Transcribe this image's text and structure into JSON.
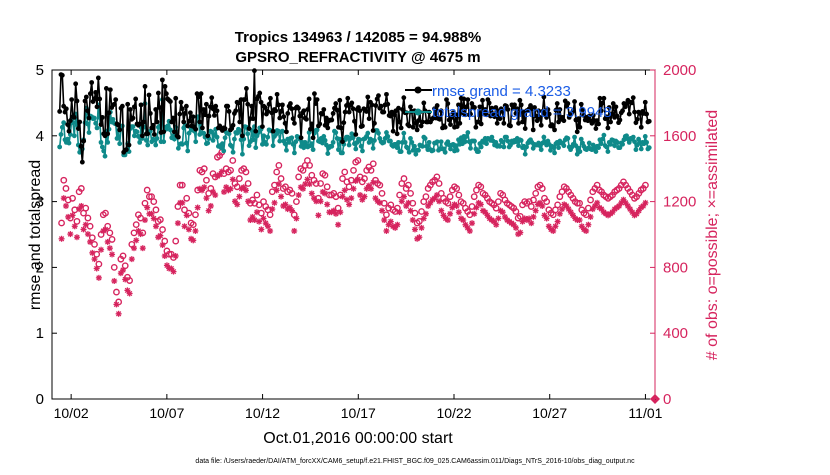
{
  "chart_data": {
    "type": "line",
    "title_line1": "Tropics 134963 / 142085 = 94.988%",
    "title_line2": "GPSRO_REFRACTIVITY @ 4675 m",
    "xlabel": "Oct.01,2016 00:00:00 start",
    "ylabel_left": "rmse and totalspread",
    "ylabel_right": "# of obs: o=possible; ×=assimilated",
    "footer": "data file: /Users/raeder/DAI/ATM_forcXX/CAM6_setup/f.e21.FHIST_BGC.f09_025.CAM6assim.011/Diags_NTrS_2016-10/obs_diag_output.nc",
    "x_ticks": [
      "10/02",
      "10/07",
      "10/12",
      "10/17",
      "10/22",
      "10/27",
      "11/01"
    ],
    "x_tick_days": [
      1,
      6,
      11,
      16,
      21,
      26,
      31
    ],
    "xlim_days": [
      0,
      31.5
    ],
    "ylim_left": [
      0,
      5
    ],
    "y_ticks_left": [
      "0",
      "1",
      "2",
      "3",
      "4",
      "5"
    ],
    "ylim_right": [
      0,
      2000
    ],
    "y_ticks_right": [
      "0",
      "400",
      "800",
      "1200",
      "1600",
      "2000"
    ],
    "legend": {
      "rmse": "rmse grand   = 4.3233",
      "spread": "totalspread grand   = 3.9948",
      "placement": "top-right"
    },
    "colors": {
      "rmse": "#000000",
      "spread": "#0f8a8a",
      "obs": "#d6245e"
    },
    "series": [
      {
        "name": "rmse",
        "values": [
          4.37,
          4.93,
          4.92,
          4.45,
          4.36,
          4.41,
          4.17,
          4.07,
          4.23,
          4.55,
          4.29,
          4.28,
          4.79,
          4.53,
          4.11,
          4.21,
          3.84,
          3.6,
          3.92,
          4.53,
          4.59,
          4.38,
          4.27,
          4.64,
          4.81,
          4.52,
          4.56,
          4.66,
          4.44,
          4.88,
          4.56,
          4.17,
          4.28,
          4.03,
          4.0,
          4.72,
          4.03,
          4.35,
          4.7,
          4.43,
          4.47,
          4.48,
          4.55,
          4.18,
          4.16,
          4.09,
          4.42,
          4.45,
          3.75,
          3.78,
          3.79,
          4.48,
          3.86,
          4.4,
          4.25,
          4.27,
          4.44,
          4.56,
          4.18,
          4.16,
          4.18,
          4.47,
          4.0,
          4.21,
          4.75,
          4.03,
          4.03,
          4.62,
          4.34,
          4.12,
          4.16,
          4.02,
          4.4,
          4.21,
          4.65,
          4.43,
          4.05,
          4.85,
          4.06,
          4.75,
          4.64,
          4.56,
          4.54,
          4.52,
          4.21,
          4.27,
          4.06,
          4.57,
          4.0,
          3.98,
          4.33,
          4.51,
          4.41,
          4.21,
          4.34,
          4.45,
          4.15,
          4.22,
          4.35,
          4.15,
          4.29,
          4.13,
          4.1,
          4.64,
          4.59,
          4.21,
          4.64,
          4.12,
          4.4,
          4.32,
          4.48,
          4.0,
          4.3,
          4.44,
          4.58,
          4.41,
          4.31,
          4.45,
          4.38,
          4.12,
          4.15,
          4.11,
          4.08,
          4.12,
          4.11,
          4.45,
          4.45,
          4.37,
          4.09,
          4.11,
          4.16,
          4.34,
          4.38,
          4.51,
          4.5,
          4.21,
          4.55,
          4.0,
          4.55,
          4.55,
          4.72,
          4.48,
          4.11,
          4.26,
          4.45,
          4.26,
          4.99,
          4.07,
          4.56,
          4.6,
          4.65,
          4.51,
          4.14,
          4.45,
          4.43,
          4.33,
          4.37,
          4.48,
          4.57,
          4.35,
          4.07,
          4.4,
          4.38,
          4.63,
          4.47,
          4.27,
          4.37,
          4.47,
          4.29,
          4.19,
          4.06,
          4.34,
          4.45,
          4.49,
          4.41,
          4.26,
          4.19,
          4.42,
          4.44,
          4.42,
          4.3,
          3.97,
          4.35,
          4.38,
          4.27,
          4.25,
          4.4,
          4.56,
          4.1,
          4.18,
          3.97,
          4.64,
          4.49,
          4.55,
          4.15,
          4.18,
          4.34,
          4.33,
          4.4,
          4.16,
          4.27,
          4.12,
          4.23,
          4.24,
          4.24,
          4.34,
          4.42,
          4.49,
          4.39,
          4.13,
          4.54,
          4.12,
          3.91,
          4.2,
          4.36,
          4.46,
          4.57,
          4.36,
          4.47,
          4.5,
          4.41,
          4.22,
          4.02,
          4.4,
          4.43,
          4.38,
          4.14,
          4.15,
          4.41,
          4.4,
          4.37,
          4.59,
          4.26,
          4.51,
          4.47,
          4.08,
          4.19,
          4.46,
          4.56,
          4.61,
          4.42,
          4.45,
          4.36,
          4.36,
          4.47,
          4.63,
          4.48,
          4.31,
          4.3,
          4.36,
          4.07,
          4.32,
          4.38,
          4.03,
          4.42,
          4.21,
          4.12,
          4.4,
          4.58,
          4.35,
          4.35,
          4.17,
          4.15,
          4.44,
          4.37,
          4.13,
          4.38,
          4.19,
          4.09,
          4.23,
          4.36,
          4.15,
          4.21,
          4.5,
          4.38,
          4.21,
          4.21,
          4.36,
          4.21,
          4.25,
          4.27,
          4.41,
          4.27,
          4.46,
          4.26,
          4.25,
          4.38,
          4.12,
          4.15,
          4.13,
          4.55,
          4.49,
          4.24,
          4.17,
          4.28,
          4.35,
          4.13,
          4.32,
          4.14,
          4.47,
          4.19,
          4.57,
          4.35,
          4.56,
          4.32,
          4.44,
          4.55,
          4.32,
          4.33,
          4.49,
          4.44,
          4.43,
          4.13,
          4.21,
          4.21,
          4.44,
          4.18,
          4.54,
          4.35,
          4.4,
          4.32,
          4.55,
          4.5,
          4.3,
          4.42,
          4.33,
          4.29,
          4.43,
          4.19,
          4.38,
          4.26,
          4.41,
          4.37,
          4.19,
          4.46,
          4.45,
          4.4,
          4.16,
          4.15,
          4.47,
          4.42,
          4.47,
          4.34,
          4.41,
          4.19,
          4.54,
          4.47,
          4.21,
          4.36,
          4.11,
          4.38,
          4.39,
          4.41,
          4.46,
          4.41,
          4.09,
          4.43,
          4.3,
          4.23,
          4.38,
          4.28,
          4.16,
          4.37,
          4.59,
          4.33,
          4.28,
          4.4,
          4.33,
          4.15,
          4.17,
          4.14,
          4.09,
          4.39,
          4.49,
          4.21,
          4.4,
          4.25,
          4.28,
          4.23,
          4.53,
          4.45,
          4.49,
          4.28,
          4.33,
          4.35,
          4.38,
          4.52,
          4.24,
          4.06,
          4.26,
          4.13,
          4.48,
          4.4,
          4.31,
          4.24,
          4.28,
          4.23,
          4.3,
          4.23,
          4.19,
          4.31,
          4.23,
          4.11,
          4.23,
          4.18,
          4.57,
          4.38,
          4.5,
          4.57,
          4.26,
          4.29,
          4.12,
          4.43,
          4.21,
          4.33,
          4.49,
          4.28,
          4.44,
          4.3,
          4.2,
          4.24,
          4.35,
          4.38,
          4.49,
          4.44,
          4.49,
          4.54,
          4.33,
          4.51,
          4.5,
          4.58,
          4.36,
          4.2,
          4.25,
          4.36,
          4.34,
          4.13,
          4.37,
          4.34,
          4.51,
          4.33,
          4.21,
          4.22
        ]
      },
      {
        "name": "totalspread",
        "values": [
          3.83,
          4.02,
          4.13,
          4.2,
          3.94,
          3.9,
          3.95,
          3.89,
          4.02,
          4.25,
          4.2,
          4.0,
          4.33,
          4.17,
          3.86,
          3.75,
          3.79,
          3.8,
          3.94,
          4.2,
          4.42,
          4.18,
          4.05,
          4.3,
          4.29,
          4.26,
          4.27,
          4.19,
          4.12,
          4.47,
          4.28,
          3.9,
          3.83,
          3.77,
          3.69,
          4.07,
          3.9,
          4.1,
          4.36,
          4.21,
          4.25,
          4.19,
          4.18,
          3.96,
          4.08,
          3.88,
          4.11,
          4.15,
          3.71,
          3.71,
          3.76,
          3.88,
          3.76,
          4.11,
          4.14,
          4.14,
          4.0,
          4.07,
          4.06,
          3.99,
          3.9,
          4.13,
          3.96,
          4.13,
          4.49,
          3.93,
          3.86,
          4.05,
          4.07,
          3.91,
          3.95,
          3.94,
          3.86,
          3.96,
          4.13,
          4.15,
          3.91,
          4.55,
          3.91,
          4.13,
          4.1,
          4.15,
          4.22,
          4.09,
          3.97,
          4.0,
          3.95,
          4.13,
          4.06,
          3.81,
          3.87,
          3.88,
          3.87,
          4.12,
          4.16,
          3.89,
          3.77,
          4.04,
          4.13,
          4.09,
          4.1,
          4.07,
          3.91,
          4.29,
          4.29,
          4.02,
          4.18,
          4.04,
          4.04,
          3.98,
          3.88,
          3.89,
          3.96,
          4.07,
          4.06,
          3.93,
          4.01,
          4.1,
          3.98,
          3.84,
          3.85,
          3.82,
          3.88,
          3.77,
          3.97,
          4.05,
          4.04,
          4.03,
          3.86,
          3.84,
          3.75,
          3.95,
          4.05,
          4.04,
          4.1,
          4.08,
          3.94,
          3.72,
          3.95,
          4.14,
          4.13,
          4.03,
          3.85,
          3.91,
          4.08,
          3.94,
          4.14,
          3.82,
          4.0,
          4.05,
          4.12,
          4.1,
          3.87,
          4.0,
          3.9,
          3.87,
          3.98,
          4.09,
          4.08,
          4.07,
          3.85,
          3.99,
          4.02,
          4.08,
          4.07,
          3.92,
          4.06,
          4.07,
          3.92,
          3.88,
          3.78,
          3.95,
          3.9,
          3.96,
          3.97,
          3.87,
          3.74,
          3.91,
          3.99,
          3.98,
          3.95,
          3.84,
          3.9,
          3.82,
          3.9,
          3.85,
          3.83,
          4.05,
          3.85,
          3.88,
          3.79,
          4.04,
          4.08,
          4.09,
          3.92,
          3.91,
          3.96,
          3.89,
          3.99,
          3.93,
          3.86,
          3.73,
          3.82,
          3.84,
          3.84,
          3.9,
          4.07,
          4.05,
          3.96,
          3.79,
          3.95,
          3.74,
          3.74,
          3.87,
          3.94,
          3.98,
          3.98,
          3.86,
          3.96,
          4.03,
          3.97,
          3.88,
          3.8,
          3.9,
          3.95,
          3.94,
          3.84,
          3.77,
          3.95,
          3.96,
          3.99,
          4.04,
          3.9,
          3.95,
          3.93,
          3.81,
          3.93,
          4.08,
          4.08,
          4.04,
          3.96,
          3.91,
          3.89,
          3.9,
          3.96,
          4.05,
          3.99,
          3.92,
          3.92,
          3.86,
          3.84,
          3.87,
          3.87,
          3.82,
          3.9,
          3.76,
          3.76,
          3.9,
          4.04,
          3.9,
          3.83,
          3.81,
          3.75,
          3.96,
          3.9,
          3.78,
          3.84,
          3.72,
          3.78,
          3.78,
          3.86,
          3.85,
          3.84,
          3.98,
          3.96,
          3.84,
          3.79,
          3.9,
          3.79,
          3.77,
          3.78,
          3.89,
          3.89,
          3.91,
          3.78,
          3.8,
          3.91,
          3.8,
          3.8,
          3.75,
          3.88,
          3.91,
          3.86,
          3.8,
          3.86,
          3.87,
          3.77,
          3.85,
          3.78,
          3.94,
          3.87,
          3.97,
          3.88,
          3.99,
          3.91,
          3.99,
          4.05,
          3.91,
          3.81,
          3.92,
          3.92,
          3.92,
          3.8,
          3.76,
          3.76,
          3.88,
          3.83,
          3.92,
          3.9,
          3.96,
          3.88,
          3.96,
          3.95,
          3.93,
          3.98,
          3.92,
          3.86,
          3.9,
          3.84,
          3.85,
          3.84,
          3.93,
          3.91,
          3.83,
          3.98,
          3.98,
          3.92,
          3.83,
          3.86,
          3.92,
          3.9,
          3.93,
          3.91,
          3.96,
          3.85,
          3.94,
          3.93,
          3.82,
          3.84,
          3.72,
          3.83,
          3.89,
          3.92,
          3.94,
          3.9,
          3.81,
          3.87,
          3.86,
          3.86,
          3.89,
          3.85,
          3.79,
          3.89,
          3.98,
          3.91,
          3.86,
          3.92,
          3.87,
          3.78,
          3.84,
          3.83,
          3.74,
          3.88,
          3.9,
          3.82,
          3.92,
          3.89,
          3.89,
          3.85,
          3.94,
          3.97,
          3.96,
          3.83,
          3.79,
          3.83,
          3.87,
          3.98,
          3.85,
          3.72,
          3.81,
          3.76,
          3.95,
          3.89,
          3.84,
          3.8,
          3.79,
          3.81,
          3.89,
          3.8,
          3.79,
          3.86,
          3.81,
          3.76,
          3.84,
          3.82,
          3.94,
          3.88,
          3.95,
          4.01,
          3.85,
          3.83,
          3.76,
          3.9,
          3.87,
          3.94,
          3.93,
          3.85,
          3.92,
          3.9,
          3.82,
          3.82,
          3.89,
          3.87,
          3.94,
          3.99,
          4.0,
          3.95,
          3.9,
          3.96,
          3.95,
          3.98,
          3.91,
          3.79,
          3.86,
          3.95,
          3.9,
          3.8,
          3.9,
          3.88,
          3.99,
          3.9,
          3.8,
          3.82
        ]
      }
    ],
    "obs_possible": [
      1070,
      1330,
      1280,
      1210,
      1100,
      1220,
      1150,
      1080,
      1260,
      1280,
      1130,
      1160,
      1100,
      1050,
      980,
      940,
      880,
      820,
      1000,
      1120,
      1130,
      1050,
      1010,
      970,
      800,
      650,
      590,
      850,
      870,
      810,
      740,
      720,
      940,
      1010,
      1060,
      1120,
      1100,
      1010,
      1190,
      1270,
      1230,
      1230,
      1200,
      1150,
      1080,
      1090,
      1030,
      960,
      900,
      880,
      880,
      860,
      960,
      1170,
      1300,
      1300,
      1150,
      1220,
      1130,
      1070,
      1060,
      1120,
      1270,
      1390,
      1380,
      1400,
      1330,
      1250,
      1280,
      1370,
      1350,
      1470,
      1480,
      1500,
      1370,
      1400,
      1380,
      1390,
      1450,
      1310,
      1290,
      1340,
      1390,
      1400,
      1380,
      1310,
      1190,
      1210,
      1190,
      1240,
      1180,
      1130,
      1200,
      1170,
      1150,
      1120,
      1260,
      1300,
      1380,
      1420,
      1340,
      1280,
      1290,
      1260,
      1270,
      1250,
      1120,
      1200,
      1350,
      1400,
      1390,
      1420,
      1450,
      1420,
      1360,
      1330,
      1310,
      1220,
      1310,
      1370,
      1360,
      1290,
      1240,
      1240,
      1250,
      1230,
      1160,
      1240,
      1340,
      1380,
      1320,
      1290,
      1330,
      1390,
      1440,
      1450,
      1350,
      1320,
      1340,
      1390,
      1410,
      1390,
      1430,
      1330,
      1310,
      1300,
      1250,
      1190,
      1120,
      1160,
      1180,
      1150,
      1140,
      1160,
      1240,
      1310,
      1340,
      1280,
      1300,
      1250,
      1190,
      1130,
      1070,
      1080,
      1140,
      1200,
      1230,
      1280,
      1300,
      1320,
      1330,
      1350,
      1310,
      1250,
      1220,
      1200,
      1190,
      1230,
      1270,
      1290,
      1280,
      1240,
      1200,
      1190,
      1160,
      1140,
      1120,
      1170,
      1230,
      1270,
      1300,
      1290,
      1250,
      1240,
      1220,
      1200,
      1190,
      1180,
      1160,
      1200,
      1250,
      1240,
      1210,
      1190,
      1180,
      1170,
      1160,
      1140,
      1100,
      1110,
      1180,
      1200,
      1190,
      1200,
      1170,
      1210,
      1250,
      1290,
      1300,
      1280,
      1220,
      1200,
      1150,
      1130,
      1120,
      1150,
      1180,
      1230,
      1260,
      1290,
      1280,
      1260,
      1240,
      1220,
      1200,
      1190,
      1190,
      1150,
      1130,
      1120,
      1160,
      1210,
      1260,
      1280,
      1300,
      1270,
      1260,
      1240,
      1230,
      1220,
      1230,
      1240,
      1260,
      1270,
      1280,
      1300,
      1320,
      1300,
      1280,
      1260,
      1240,
      1220,
      1230,
      1250,
      1270,
      1280,
      1300
    ]
  }
}
